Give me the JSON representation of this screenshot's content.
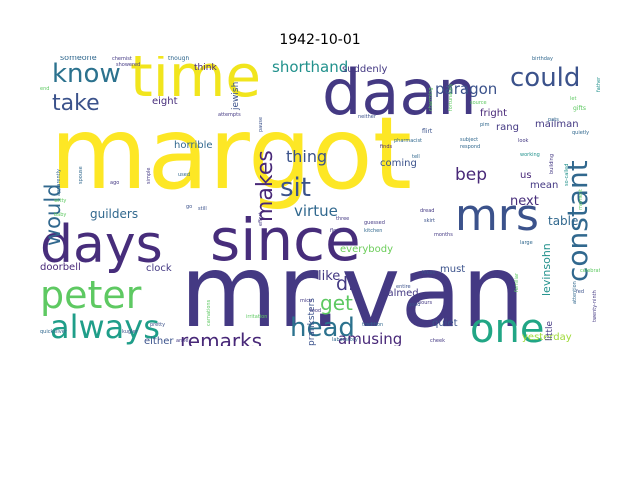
{
  "chart_data": {
    "type": "wordcloud",
    "title": "1942-10-01",
    "words": [
      {
        "text": "margot",
        "weight": 100,
        "color": "#fde725"
      },
      {
        "text": "mr.van",
        "weight": 96,
        "color": "#443983"
      },
      {
        "text": "daan",
        "weight": 60,
        "color": "#443983"
      },
      {
        "text": "time",
        "weight": 58,
        "color": "#f1e51d"
      },
      {
        "text": "since",
        "weight": 56,
        "color": "#472d7b"
      },
      {
        "text": "days",
        "weight": 52,
        "color": "#472d7b"
      },
      {
        "text": "mrs",
        "weight": 44,
        "color": "#3b528b"
      },
      {
        "text": "one",
        "weight": 40,
        "color": "#21a685"
      },
      {
        "text": "peter",
        "weight": 36,
        "color": "#5ec962"
      },
      {
        "text": "always",
        "weight": 32,
        "color": "#1f9e89"
      },
      {
        "text": "constant",
        "weight": 26,
        "color": "#31688e"
      },
      {
        "text": "could",
        "weight": 25,
        "color": "#3b528b"
      },
      {
        "text": "head",
        "weight": 24,
        "color": "#2c728e"
      },
      {
        "text": "know",
        "weight": 24,
        "color": "#2c728e"
      },
      {
        "text": "sit",
        "weight": 24,
        "color": "#3b528b"
      },
      {
        "text": "take",
        "weight": 21,
        "color": "#3b528b"
      },
      {
        "text": "makes",
        "weight": 21,
        "color": "#482878"
      },
      {
        "text": "would",
        "weight": 20,
        "color": "#31688e"
      },
      {
        "text": "remarks",
        "weight": 19,
        "color": "#482878"
      },
      {
        "text": "get",
        "weight": 19,
        "color": "#5ec962"
      },
      {
        "text": "d.",
        "weight": 18,
        "color": "#443983"
      },
      {
        "text": "bep",
        "weight": 16,
        "color": "#482878"
      },
      {
        "text": "thing",
        "weight": 15,
        "color": "#3b528b"
      },
      {
        "text": "paragon",
        "weight": 14,
        "color": "#3b528b"
      },
      {
        "text": "shorthand",
        "weight": 14,
        "color": "#21918c"
      },
      {
        "text": "virtue",
        "weight": 14,
        "color": "#31688e"
      },
      {
        "text": "amusing",
        "weight": 14,
        "color": "#482878"
      },
      {
        "text": "guilders",
        "weight": 12,
        "color": "#31688e"
      },
      {
        "text": "table",
        "weight": 12,
        "color": "#31688e"
      },
      {
        "text": "like",
        "weight": 12,
        "color": "#443983"
      },
      {
        "text": "next",
        "weight": 12,
        "color": "#472d7b"
      },
      {
        "text": "levinsohn",
        "weight": 11,
        "color": "#21918c"
      },
      {
        "text": "everybody",
        "weight": 10,
        "color": "#6ccd5a"
      },
      {
        "text": "horrible",
        "weight": 9,
        "color": "#31688e"
      },
      {
        "text": "eight",
        "weight": 9,
        "color": "#472d7b"
      },
      {
        "text": "calmed",
        "weight": 9,
        "color": "#443983"
      },
      {
        "text": "coming",
        "weight": 9,
        "color": "#3b528b"
      },
      {
        "text": "suddenly",
        "weight": 9,
        "color": "#443983"
      },
      {
        "text": "fright",
        "weight": 9,
        "color": "#482878"
      },
      {
        "text": "clock",
        "weight": 9,
        "color": "#443983"
      },
      {
        "text": "doorbell",
        "weight": 9,
        "color": "#482878"
      },
      {
        "text": "mean",
        "weight": 9,
        "color": "#443983"
      },
      {
        "text": "us",
        "weight": 9,
        "color": "#482878"
      },
      {
        "text": "rang",
        "weight": 9,
        "color": "#443983"
      },
      {
        "text": "either",
        "weight": 9,
        "color": "#3b528b"
      },
      {
        "text": "mailman",
        "weight": 9,
        "color": "#443983"
      },
      {
        "text": "quiet",
        "weight": 9,
        "color": "#3b528b"
      },
      {
        "text": "swore",
        "weight": 9,
        "color": "#3b528b"
      },
      {
        "text": "yesterday",
        "weight": 9,
        "color": "#a0da39"
      },
      {
        "text": "must",
        "weight": 9,
        "color": "#3b528b"
      },
      {
        "text": "think",
        "weight": 8,
        "color": "#482878"
      },
      {
        "text": "jewish",
        "weight": 8,
        "color": "#3b528b"
      },
      {
        "text": "pranksters",
        "weight": 8,
        "color": "#3b528b"
      },
      {
        "text": "someone",
        "weight": 7,
        "color": "#31688e"
      },
      {
        "text": "little",
        "weight": 8,
        "color": "#443983"
      },
      {
        "text": "though",
        "weight": 5,
        "color": "#31688e"
      },
      {
        "text": "chemist",
        "weight": 4,
        "color": "#443983"
      },
      {
        "text": "showered",
        "weight": 4,
        "color": "#443983"
      },
      {
        "text": "birthday",
        "weight": 4,
        "color": "#31688e"
      },
      {
        "text": "father",
        "weight": 4,
        "color": "#21918c"
      },
      {
        "text": "gifts",
        "weight": 4,
        "color": "#5ec962"
      },
      {
        "text": "let",
        "weight": 4,
        "color": "#5ec962"
      },
      {
        "text": "pats",
        "weight": 4,
        "color": "#31688e"
      },
      {
        "text": "quietly",
        "weight": 4,
        "color": "#31688e"
      },
      {
        "text": "attempts",
        "weight": 4,
        "color": "#443983"
      },
      {
        "text": "neither",
        "weight": 4,
        "color": "#3b528b"
      },
      {
        "text": "source",
        "weight": 4,
        "color": "#5ec962"
      },
      {
        "text": "pim",
        "weight": 4,
        "color": "#31688e"
      },
      {
        "text": "charming",
        "weight": 4,
        "color": "#5ec962"
      },
      {
        "text": "fortunately",
        "weight": 4,
        "color": "#5ec962"
      },
      {
        "text": "flirt",
        "weight": 4,
        "color": "#3b528b"
      },
      {
        "text": "pharmacist",
        "weight": 4,
        "color": "#31688e"
      },
      {
        "text": "finds",
        "weight": 4,
        "color": "#482878"
      },
      {
        "text": "subject",
        "weight": 4,
        "color": "#31688e"
      },
      {
        "text": "respond",
        "weight": 4,
        "color": "#31688e"
      },
      {
        "text": "look",
        "weight": 4,
        "color": "#443983"
      },
      {
        "text": "working",
        "weight": 4,
        "color": "#21918c"
      },
      {
        "text": "tell",
        "weight": 4,
        "color": "#31688e"
      },
      {
        "text": "building",
        "weight": 4,
        "color": "#443983"
      },
      {
        "text": "so-called",
        "weight": 4,
        "color": "#21918c"
      },
      {
        "text": "moment",
        "weight": 4,
        "color": "#5ec962"
      },
      {
        "text": "used",
        "weight": 4,
        "color": "#31688e"
      },
      {
        "text": "simple",
        "weight": 4,
        "color": "#443983"
      },
      {
        "text": "ago",
        "weight": 4,
        "color": "#443983"
      },
      {
        "text": "spouse",
        "weight": 4,
        "color": "#31688e"
      },
      {
        "text": "apparently",
        "weight": 4,
        "color": "#31688e"
      },
      {
        "text": "baby",
        "weight": 4,
        "color": "#5ec962"
      },
      {
        "text": "go",
        "weight": 4,
        "color": "#3b528b"
      },
      {
        "text": "still",
        "weight": 4,
        "color": "#3b528b"
      },
      {
        "text": "effort",
        "weight": 4,
        "color": "#443983"
      },
      {
        "text": "guessed",
        "weight": 4,
        "color": "#443983"
      },
      {
        "text": "kitchen",
        "weight": 4,
        "color": "#31688e"
      },
      {
        "text": "dread",
        "weight": 4,
        "color": "#443983"
      },
      {
        "text": "skirt",
        "weight": 4,
        "color": "#3b528b"
      },
      {
        "text": "months",
        "weight": 4,
        "color": "#443983"
      },
      {
        "text": "entire",
        "weight": 4,
        "color": "#3b528b"
      },
      {
        "text": "hikes",
        "weight": 4,
        "color": "#3b528b"
      },
      {
        "text": "hours",
        "weight": 4,
        "color": "#443983"
      },
      {
        "text": "familiar",
        "weight": 4,
        "color": "#5ec962"
      },
      {
        "text": "large",
        "weight": 4,
        "color": "#31688e"
      },
      {
        "text": "celebration",
        "weight": 4,
        "color": "#5ec962"
      },
      {
        "text": "fed",
        "weight": 4,
        "color": "#3b528b"
      },
      {
        "text": "attention",
        "weight": 4,
        "color": "#31688e"
      },
      {
        "text": "twenty-ninth",
        "weight": 4,
        "color": "#443983"
      },
      {
        "text": "pause",
        "weight": 4,
        "color": "#3b528b"
      },
      {
        "text": "flowers",
        "weight": 4,
        "color": "#443983"
      },
      {
        "text": "tradition",
        "weight": 4,
        "color": "#31688e"
      },
      {
        "text": "good",
        "weight": 4,
        "color": "#3b528b"
      },
      {
        "text": "mice",
        "weight": 4,
        "color": "#443983"
      },
      {
        "text": "food",
        "weight": 4,
        "color": "#443983"
      },
      {
        "text": "irritation",
        "weight": 4,
        "color": "#5ec962"
      },
      {
        "text": "carnations",
        "weight": 4,
        "color": "#5ec962"
      },
      {
        "text": "pretty",
        "weight": 4,
        "color": "#3b528b"
      },
      {
        "text": "anne",
        "weight": 4,
        "color": "#443983"
      },
      {
        "text": "kugler",
        "weight": 4,
        "color": "#3b528b"
      },
      {
        "text": "quicksilver",
        "weight": 4,
        "color": "#31688e"
      },
      {
        "text": "laboratory",
        "weight": 4,
        "color": "#31688e"
      },
      {
        "text": "cheek",
        "weight": 4,
        "color": "#443983"
      },
      {
        "text": "three",
        "weight": 4,
        "color": "#443983"
      },
      {
        "text": "witty",
        "weight": 4,
        "color": "#5ec962"
      },
      {
        "text": "end",
        "weight": 4,
        "color": "#5ec962"
      }
    ]
  }
}
